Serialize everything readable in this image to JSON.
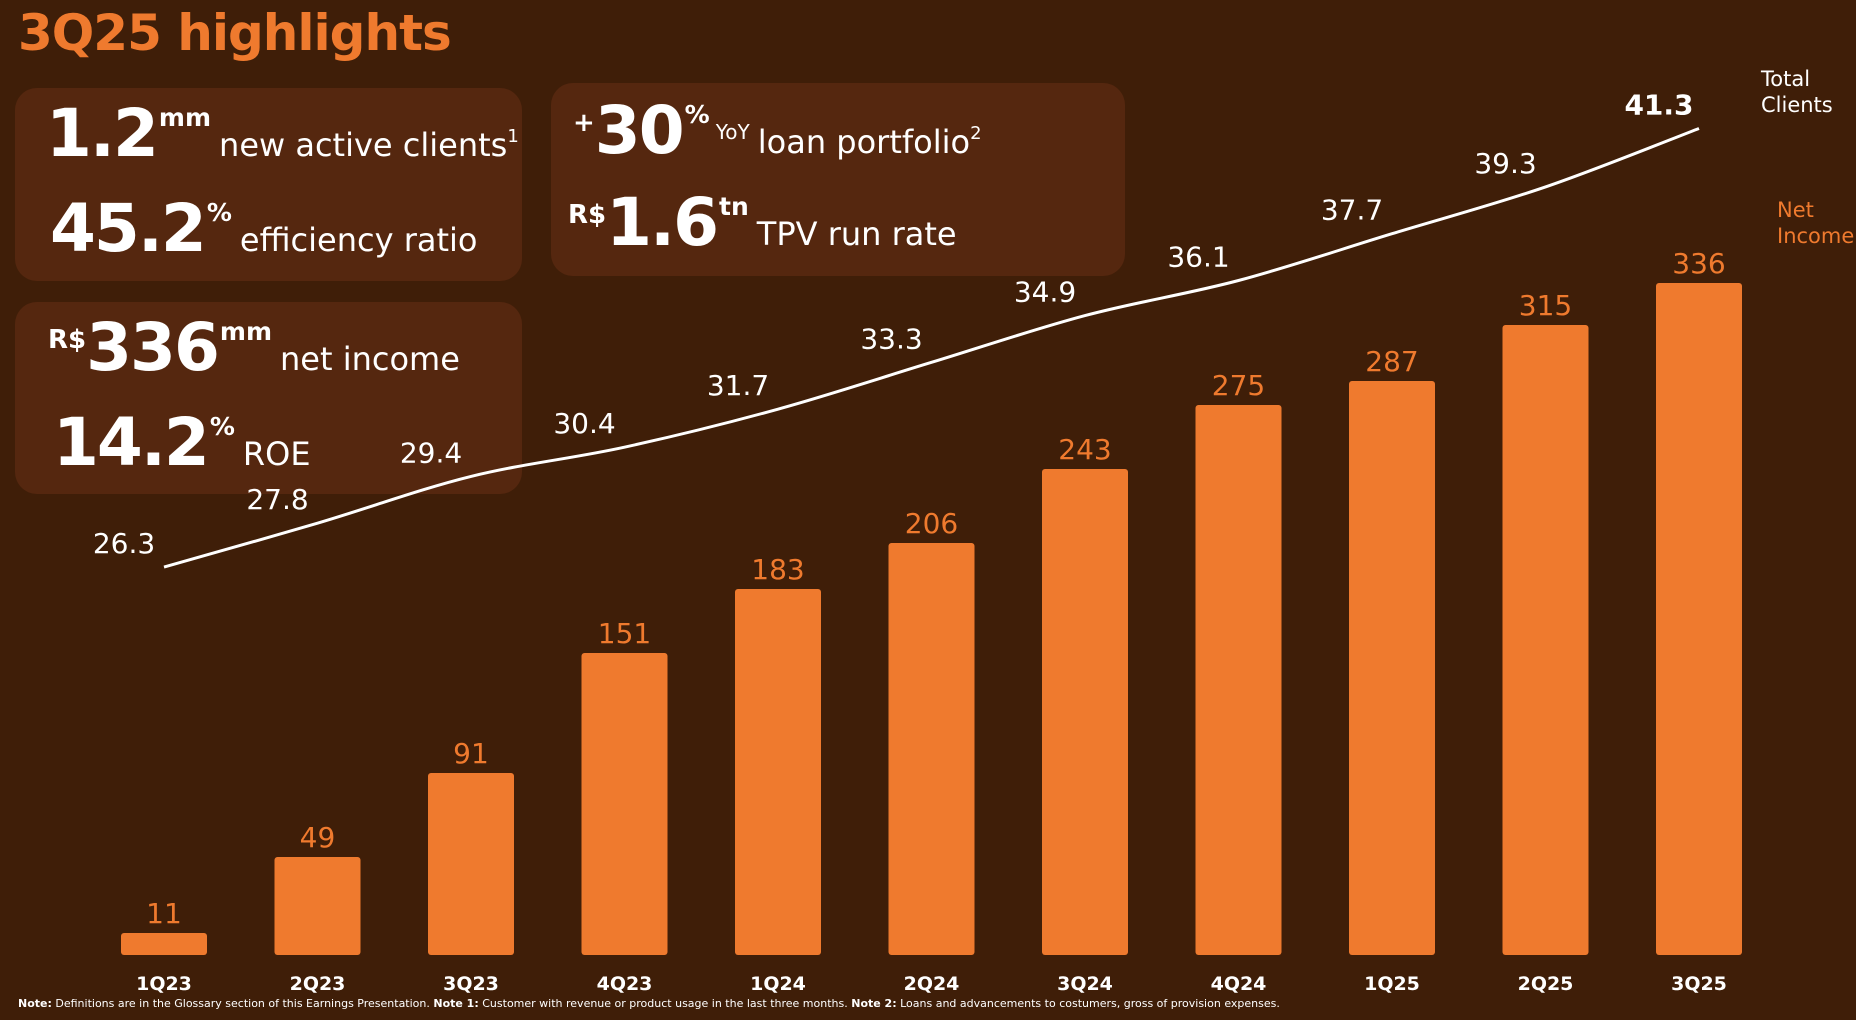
{
  "title": "3Q25 highlights",
  "colors": {
    "accent": "#ef7a2e",
    "background": "#3f1e08",
    "card": "#55270f",
    "line": "#ffffff"
  },
  "kpis": {
    "clients": {
      "value": "1.2",
      "unit": "mm",
      "label": "new active clients",
      "note": "1"
    },
    "efficiency": {
      "value": "45.2",
      "unit": "%",
      "label": "efficiency ratio"
    },
    "loans": {
      "prefix": "+",
      "value": "30",
      "unit": "%",
      "qualifier": "YoY",
      "label": "loan portfolio",
      "note": "2"
    },
    "tpv": {
      "prefix": "R$",
      "value": "1.6",
      "unit": "tn",
      "label": "TPV run rate"
    },
    "net_income": {
      "prefix": "R$",
      "value": "336",
      "unit": "mm",
      "label": "net income"
    },
    "roe": {
      "value": "14.2",
      "unit": "%",
      "label": "ROE"
    }
  },
  "chart_data": {
    "type": "bar",
    "categories": [
      "1Q23",
      "2Q23",
      "3Q23",
      "4Q23",
      "1Q24",
      "2Q24",
      "3Q24",
      "4Q24",
      "1Q25",
      "2Q25",
      "3Q25"
    ],
    "series": [
      {
        "name": "Net Income",
        "type": "bar",
        "label": "Net\nIncome",
        "color": "#ef7a2e",
        "values": [
          11,
          49,
          91,
          151,
          183,
          206,
          243,
          275,
          287,
          315,
          336
        ]
      },
      {
        "name": "Total Clients",
        "type": "line",
        "label": "Total\nClients",
        "color": "#ffffff",
        "values": [
          26.3,
          27.8,
          29.4,
          30.4,
          31.7,
          33.3,
          34.9,
          36.1,
          37.7,
          39.3,
          41.3
        ]
      }
    ],
    "bar_ylim": [
      0,
      356
    ],
    "line_ylim": [
      21,
      42
    ]
  },
  "footnote": {
    "note_label": "Note:",
    "note_text": " Definitions are in the Glossary section of this Earnings Presentation. ",
    "note1_label": "Note 1:",
    "note1_text": " Customer with revenue or product usage in the last three months. ",
    "note2_label": "Note 2:",
    "note2_text": " Loans and advancements to costumers, gross of provision expenses."
  }
}
